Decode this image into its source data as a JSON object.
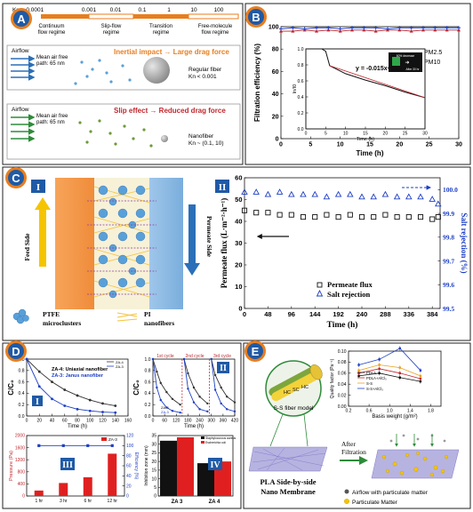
{
  "colors": {
    "badge_blue": "#1f5aa6",
    "section_orange": "#e87e1e",
    "panel_border": "#222222",
    "red": "#c0272d",
    "blue": "#1d3fc4",
    "green": "#2e8b3a",
    "yellow": "#f5c400"
  },
  "badges": {
    "a": "A",
    "b": "B",
    "c": "C",
    "d": "D",
    "e": "E"
  },
  "panel_a": {
    "kn_scale_label": "Kn = 0.0001",
    "kn_ticks": [
      "0.001",
      "0.01",
      "0.1",
      "1",
      "10",
      "100"
    ],
    "regimes": [
      "Continuum flow regime",
      "Slip-flow regime",
      "Transition regime",
      "Free-molecule flow regime"
    ],
    "top_box": {
      "airflow": "Airflow",
      "mean_free_path": "Mean air free path: 65 nm",
      "title": "Inertial impact → Large drag force",
      "fiber": "Regular fiber",
      "kn": "Kn < 0.001"
    },
    "bottom_box": {
      "airflow": "Airflow",
      "mean_free_path": "Mean air free path: 65 nm",
      "title": "Slip effect → Reduced drag force",
      "fiber": "Nanofiber",
      "kn": "Kn ~ (0.1, 10)"
    }
  },
  "panel_b": {
    "ylabel": "Filtration efficiency (%)",
    "xlabel": "Time (h)",
    "legend": [
      "PM2.5",
      "PM10"
    ],
    "inset": {
      "ylabel": "ln/I0",
      "xlabel": "Time (h)",
      "equation": "y = -0.015x+0.84",
      "photo_caption_top": "60% decrease",
      "photo_caption_bottom": "After 30 hr"
    }
  },
  "panel_c": {
    "roman_left": "I",
    "roman_right": "II",
    "feed_side": "Feed Side",
    "permeate_side": "Permeate Side",
    "legend_ptfe": "PTFE microclusters",
    "legend_pi": "PI nanofibers",
    "ylabel_left": "Permeate flux (L·m⁻²·h⁻¹)",
    "ylabel_right": "Salt rejection (%)",
    "xlabel": "Time (h)",
    "series_legend": [
      "Permeate flux",
      "Salt rejection"
    ]
  },
  "panel_d": {
    "sub1": {
      "roman": "I",
      "ylabel": "C/C₀",
      "xlabel": "Time (h)",
      "legend": [
        "ZA-4",
        "ZA-3"
      ],
      "note1": "ZA-4: Uniaxial nanofiber",
      "note2": "ZA-3: Janus nanofiber"
    },
    "sub2": {
      "roman": "II",
      "ylabel": "C/C₀",
      "xlabel": "Time (h)",
      "cycles": [
        "1st cycle",
        "2nd cycle",
        "3rd cycle"
      ],
      "legend": [
        "ZA-4",
        "ZA-3"
      ]
    },
    "sub3": {
      "roman": "III",
      "ylabel": "Pressure (Pa)",
      "ylabel2": "Efficiency (%)",
      "legend": "ZA-3"
    },
    "sub4": {
      "roman": "IV",
      "ylabel": "Inhibition zone (mm)",
      "legend": [
        "Staphylococcus aureus",
        "Escherichia coli"
      ]
    }
  },
  "panel_e": {
    "fiber_model": "S-S fiber model",
    "core_labels": [
      "HC",
      "SC",
      "HC"
    ],
    "membrane_title_line1": "PLA Side-by-side",
    "membrane_title_line2": "Nano Membrane",
    "after_filtration": "After Filtration",
    "legend": [
      "Airflow with particulate matter",
      "Particulate Matter"
    ],
    "chart_ylabel": "Quality factor (Pa⁻¹)",
    "chart_xlabel": "Basis weight (g/m²)",
    "chart_legend": [
      "PDLA",
      "PDLA+AlCl₃",
      "S-S",
      "S-S+AlCl₃"
    ]
  },
  "chart_data": [
    {
      "type": "scatter",
      "title": "",
      "xlabel": "Time (h)",
      "ylabel": "Filtration efficiency (%)",
      "xlim": [
        0,
        30
      ],
      "ylim": [
        0,
        100
      ],
      "x_ticks": [
        0,
        5,
        10,
        15,
        20,
        25,
        30
      ],
      "y_ticks": [
        0,
        20,
        40,
        60,
        80,
        100
      ],
      "series": [
        {
          "name": "PM2.5",
          "x": [
            0,
            2,
            4,
            6,
            8,
            10,
            12,
            14,
            16,
            18,
            20,
            22,
            24,
            26,
            28,
            30
          ],
          "values": [
            96,
            96,
            97,
            96,
            97,
            96,
            97,
            97,
            96,
            97,
            97,
            96,
            97,
            97,
            97,
            97
          ]
        },
        {
          "name": "PM10",
          "x": [
            0,
            2,
            4,
            6,
            8,
            10,
            12,
            14,
            16,
            18,
            20,
            22,
            24,
            26,
            28,
            30
          ],
          "values": [
            98,
            99,
            98,
            99,
            99,
            98,
            99,
            99,
            99,
            98,
            99,
            99,
            99,
            99,
            99,
            99
          ]
        }
      ]
    },
    {
      "type": "line",
      "title": "",
      "xlabel": "Time (h)",
      "ylabel": "ln/I0",
      "xlim": [
        0,
        30
      ],
      "ylim": [
        0.0,
        1.0
      ],
      "x_ticks": [
        0,
        5,
        10,
        15,
        20,
        25,
        30
      ],
      "y_ticks": [
        0.0,
        0.2,
        0.4,
        0.6,
        0.8,
        1.0
      ],
      "series": [
        {
          "name": "",
          "x": [
            0,
            4,
            5,
            6,
            10,
            15,
            20,
            25,
            30
          ],
          "values": [
            1.0,
            1.0,
            0.97,
            0.79,
            0.69,
            0.61,
            0.54,
            0.46,
            0.39
          ]
        }
      ]
    },
    {
      "type": "scatter",
      "title": "",
      "xlabel": "Time (h)",
      "ylabel": "Permeate flux (L·m⁻²·h⁻¹)",
      "ylabel_right": "Salt rejection (%)",
      "xlim": [
        0,
        400
      ],
      "ylim": [
        0,
        60
      ],
      "ylim_right": [
        99.5,
        100.05
      ],
      "x_ticks": [
        0,
        48,
        96,
        144,
        192,
        240,
        288,
        336,
        384
      ],
      "y_ticks": [
        0,
        10,
        20,
        30,
        40,
        50,
        60
      ],
      "y_ticks_right": [
        99.5,
        99.6,
        99.7,
        99.8,
        99.9,
        100.0
      ],
      "series": [
        {
          "name": "Permeate flux",
          "axis": "left",
          "x": [
            0,
            24,
            48,
            72,
            96,
            120,
            144,
            168,
            192,
            216,
            240,
            264,
            288,
            312,
            336,
            360,
            384,
            396
          ],
          "values": [
            45,
            44,
            44,
            43,
            43,
            42,
            42,
            43,
            42,
            43,
            42,
            42,
            43,
            42,
            42,
            42,
            41,
            42
          ]
        },
        {
          "name": "Salt rejection",
          "axis": "right",
          "x": [
            0,
            24,
            48,
            72,
            96,
            120,
            144,
            168,
            192,
            216,
            240,
            264,
            288,
            312,
            336,
            360,
            384,
            396
          ],
          "values": [
            99.99,
            99.99,
            99.98,
            99.99,
            99.98,
            99.98,
            99.98,
            99.97,
            99.98,
            99.98,
            99.97,
            99.97,
            99.98,
            99.97,
            99.97,
            99.97,
            99.96,
            99.94
          ]
        }
      ]
    },
    {
      "type": "line",
      "title": "",
      "xlabel": "Time (h)",
      "ylabel": "C/C₀",
      "xlim": [
        0,
        160
      ],
      "ylim": [
        0,
        1.0
      ],
      "x_ticks": [
        0,
        20,
        40,
        60,
        80,
        100,
        120,
        140,
        160
      ],
      "y_ticks": [
        0.0,
        0.2,
        0.4,
        0.6,
        0.8,
        1.0
      ],
      "series": [
        {
          "name": "ZA-4",
          "x": [
            0,
            20,
            40,
            60,
            80,
            100,
            120,
            140
          ],
          "values": [
            1.0,
            0.78,
            0.6,
            0.46,
            0.36,
            0.28,
            0.22,
            0.18
          ]
        },
        {
          "name": "ZA-3",
          "x": [
            0,
            20,
            40,
            60,
            80,
            100,
            120,
            140
          ],
          "values": [
            1.0,
            0.52,
            0.3,
            0.18,
            0.12,
            0.09,
            0.07,
            0.06
          ]
        }
      ]
    },
    {
      "type": "line",
      "title": "",
      "xlabel": "Time (h)",
      "ylabel": "C/C₀",
      "xlim": [
        0,
        420
      ],
      "ylim": [
        0,
        1.0
      ],
      "x_ticks": [
        0,
        60,
        120,
        180,
        240,
        300,
        360,
        420
      ],
      "y_ticks": [
        0.0,
        0.2,
        0.4,
        0.6,
        0.8,
        1.0
      ],
      "series": [
        {
          "name": "ZA-4",
          "x": [
            0,
            20,
            40,
            70,
            100,
            140,
            160,
            180,
            210,
            240,
            280,
            300,
            320,
            350,
            380,
            420
          ],
          "values": [
            1.0,
            0.78,
            0.58,
            0.42,
            0.3,
            0.2,
            1.0,
            0.75,
            0.5,
            0.34,
            0.22,
            1.0,
            0.72,
            0.5,
            0.34,
            0.24
          ]
        },
        {
          "name": "ZA-3",
          "x": [
            0,
            20,
            40,
            70,
            100,
            140,
            160,
            180,
            210,
            240,
            280,
            300,
            320,
            350,
            380,
            420
          ],
          "values": [
            1.0,
            0.5,
            0.28,
            0.15,
            0.09,
            0.06,
            1.0,
            0.48,
            0.24,
            0.12,
            0.08,
            1.0,
            0.46,
            0.22,
            0.12,
            0.08
          ]
        }
      ]
    },
    {
      "type": "bar",
      "title": "",
      "xlabel": "",
      "ylabel": "Pressure (Pa)",
      "ylabel_right": "Efficiency (%)",
      "categories": [
        "1 hr",
        "3 hr",
        "6 hr",
        "12 hr"
      ],
      "ylim": [
        0,
        2000
      ],
      "y_ticks": [
        0,
        400,
        800,
        1200,
        1600,
        2000
      ],
      "ylim_right": [
        0,
        120
      ],
      "y_ticks_right": [
        0,
        20,
        40,
        60,
        80,
        100,
        120
      ],
      "series": [
        {
          "name": "ZA-3",
          "type": "bar",
          "values": [
            180,
            430,
            620,
            1400
          ]
        },
        {
          "name": "",
          "type": "line",
          "axis": "right",
          "values": [
            100,
            100,
            100,
            100
          ]
        }
      ]
    },
    {
      "type": "bar",
      "title": "",
      "xlabel": "",
      "ylabel": "Inhibition zone (mm)",
      "categories": [
        "ZA 3",
        "ZA 4"
      ],
      "ylim": [
        0,
        35
      ],
      "y_ticks": [
        0,
        5,
        10,
        15,
        20,
        25,
        30,
        35
      ],
      "series": [
        {
          "name": "Staphylococcus aureus",
          "values": [
            32,
            19
          ]
        },
        {
          "name": "Escherichia coli",
          "values": [
            34,
            20
          ]
        }
      ]
    },
    {
      "type": "line",
      "title": "",
      "xlabel": "Basis weight (g/m²)",
      "ylabel": "Quality factor (Pa⁻¹)",
      "xlim": [
        0.2,
        2.0
      ],
      "ylim": [
        0.0,
        0.1
      ],
      "x_ticks": [
        0.2,
        0.6,
        1.0,
        1.4,
        1.8
      ],
      "x_tick_labels": [
        "0.2",
        "0.6",
        "1.0",
        "1.4",
        "1.8"
      ],
      "y_ticks": [
        0.0,
        0.02,
        0.04,
        0.06,
        0.08,
        0.1
      ],
      "series": [
        {
          "name": "PDLA",
          "x": [
            0.4,
            0.8,
            1.2,
            1.6
          ],
          "values": [
            0.055,
            0.06,
            0.052,
            0.045
          ]
        },
        {
          "name": "PDLA+AlCl₃",
          "x": [
            0.4,
            0.8,
            1.2,
            1.6
          ],
          "values": [
            0.06,
            0.068,
            0.06,
            0.05
          ]
        },
        {
          "name": "S-S",
          "x": [
            0.4,
            0.8,
            1.2,
            1.6
          ],
          "values": [
            0.065,
            0.075,
            0.07,
            0.055
          ]
        },
        {
          "name": "S-S+AlCl₃",
          "x": [
            0.4,
            0.8,
            1.2,
            1.6
          ],
          "values": [
            0.075,
            0.085,
            0.105,
            0.065
          ]
        }
      ]
    }
  ]
}
